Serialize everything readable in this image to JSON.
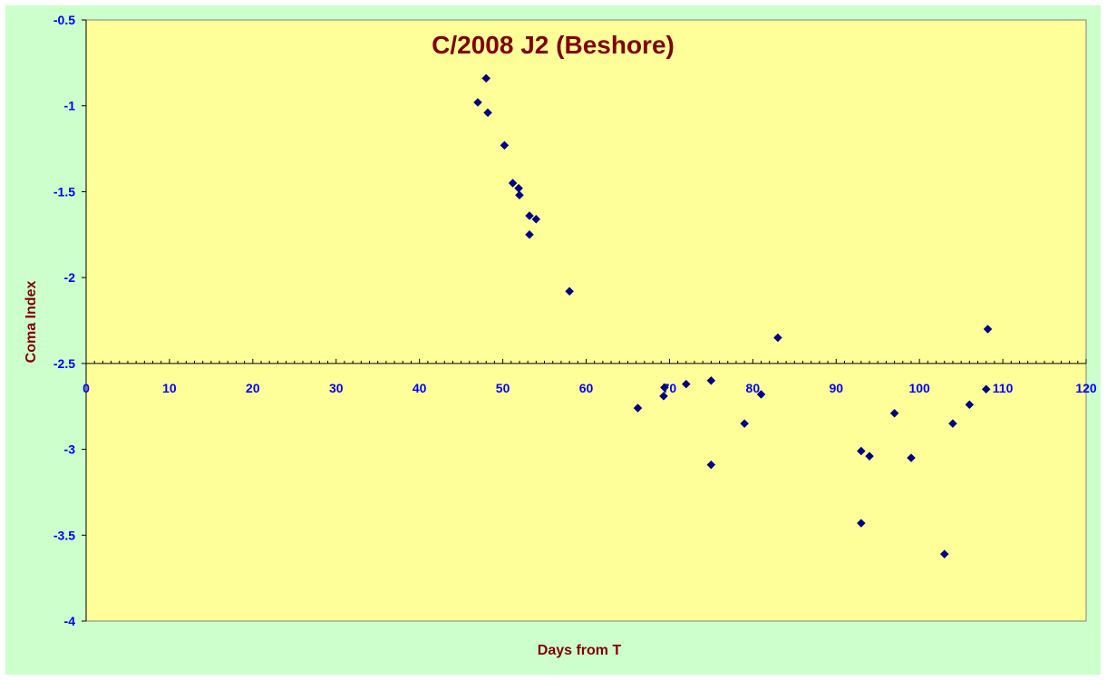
{
  "chart_data": {
    "type": "scatter",
    "title": "C/2008 J2 (Beshore)",
    "xlabel": "Days from T",
    "ylabel": "Coma Index",
    "xlim": [
      0,
      120
    ],
    "ylim": [
      -4,
      -0.5
    ],
    "x_ticks": [
      0,
      10,
      20,
      30,
      40,
      50,
      60,
      70,
      80,
      90,
      100,
      110,
      120
    ],
    "y_ticks": [
      -0.5,
      -1,
      -1.5,
      -2,
      -2.5,
      -3,
      -3.5,
      -4
    ],
    "x_axis_crosses_at": -2.5,
    "grid": false,
    "legend": "none",
    "colors": {
      "chart_background": "#ccffcc",
      "plot_background": "#ffff99",
      "marker": "#000080",
      "title": "#800000",
      "axis_title": "#800000",
      "tick_labels": "#0000ff"
    },
    "series": [
      {
        "marker": "diamond",
        "points": [
          [
            47,
            -0.98
          ],
          [
            48,
            -0.84
          ],
          [
            48.2,
            -1.04
          ],
          [
            50.2,
            -1.23
          ],
          [
            51.2,
            -1.45
          ],
          [
            51.9,
            -1.48
          ],
          [
            52,
            -1.52
          ],
          [
            53.2,
            -1.64
          ],
          [
            53.2,
            -1.75
          ],
          [
            54,
            -1.66
          ],
          [
            58,
            -2.08
          ],
          [
            66.2,
            -2.76
          ],
          [
            69.3,
            -2.69
          ],
          [
            69.4,
            -2.64
          ],
          [
            72,
            -2.62
          ],
          [
            75,
            -2.6
          ],
          [
            75,
            -3.09
          ],
          [
            79,
            -2.85
          ],
          [
            81,
            -2.68
          ],
          [
            83,
            -2.35
          ],
          [
            93,
            -3.01
          ],
          [
            93,
            -3.43
          ],
          [
            94,
            -3.04
          ],
          [
            97,
            -2.79
          ],
          [
            99,
            -3.05
          ],
          [
            103,
            -3.61
          ],
          [
            104,
            -2.85
          ],
          [
            106,
            -2.74
          ],
          [
            108,
            -2.65
          ],
          [
            108.2,
            -2.3
          ]
        ]
      }
    ]
  }
}
